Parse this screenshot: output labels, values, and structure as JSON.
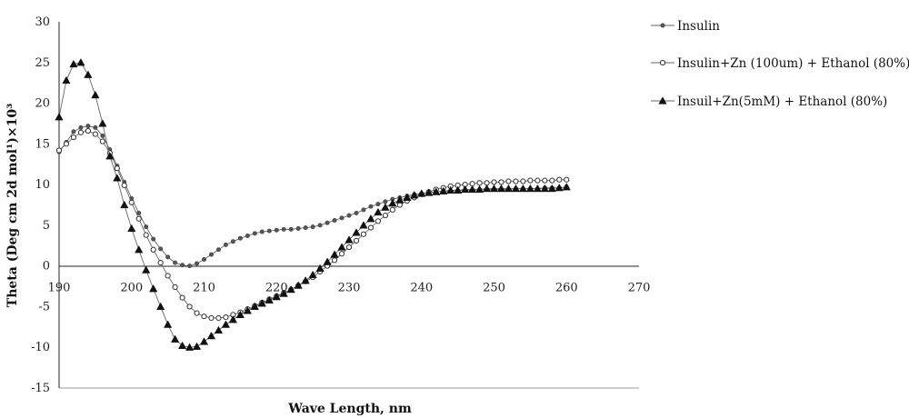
{
  "chart_data": {
    "type": "line",
    "title": "",
    "xlabel": "Wave Length, nm",
    "ylabel": "Theta (Deg cm 2d mol¹)×10³",
    "xlim": [
      190,
      270
    ],
    "ylim": [
      -15,
      30
    ],
    "xticks": [
      "190",
      "200",
      "210",
      "220",
      "230",
      "240",
      "250",
      "260",
      "270"
    ],
    "yticks": [
      "30",
      "25",
      "20",
      "15",
      "10",
      "5",
      "0",
      "-5",
      "-10",
      "-15"
    ],
    "grid": false,
    "legend_position": "right",
    "series": [
      {
        "name": "Insulin",
        "marker": "filled-dot",
        "x": [
          190,
          191,
          192,
          193,
          194,
          195,
          196,
          197,
          198,
          199,
          200,
          201,
          202,
          203,
          204,
          205,
          206,
          207,
          208,
          209,
          210,
          211,
          212,
          213,
          214,
          215,
          216,
          217,
          218,
          219,
          220,
          221,
          222,
          223,
          224,
          225,
          226,
          227,
          228,
          229,
          230,
          231,
          232,
          233,
          234,
          235,
          236,
          237,
          238,
          239,
          240,
          241,
          242,
          243,
          244,
          245,
          246,
          247,
          248,
          249,
          250,
          251,
          252,
          253,
          254,
          255,
          256,
          257,
          258,
          259,
          260
        ],
        "y": [
          14.0,
          15.2,
          16.5,
          17.0,
          17.2,
          17.0,
          16.0,
          14.3,
          12.3,
          10.3,
          8.3,
          6.5,
          4.8,
          3.3,
          2.1,
          1.1,
          0.4,
          0.1,
          0.0,
          0.3,
          0.8,
          1.4,
          2.0,
          2.6,
          3.0,
          3.4,
          3.7,
          4.0,
          4.2,
          4.3,
          4.4,
          4.5,
          4.5,
          4.6,
          4.7,
          4.8,
          5.0,
          5.3,
          5.6,
          5.9,
          6.2,
          6.5,
          6.9,
          7.3,
          7.6,
          7.9,
          8.2,
          8.4,
          8.6,
          8.8,
          8.9,
          9.0,
          9.1,
          9.2,
          9.2,
          9.3,
          9.3,
          9.3,
          9.4,
          9.4,
          9.4,
          9.4,
          9.4,
          9.5,
          9.5,
          9.5,
          9.5,
          9.6,
          9.6,
          9.6,
          9.7
        ]
      },
      {
        "name": "Insulin+Zn (100um) + Ethanol (80%)",
        "marker": "open-circle",
        "x": [
          190,
          191,
          192,
          193,
          194,
          195,
          196,
          197,
          198,
          199,
          200,
          201,
          202,
          203,
          204,
          205,
          206,
          207,
          208,
          209,
          210,
          211,
          212,
          213,
          214,
          215,
          216,
          217,
          218,
          219,
          220,
          221,
          222,
          223,
          224,
          225,
          226,
          227,
          228,
          229,
          230,
          231,
          232,
          233,
          234,
          235,
          236,
          237,
          238,
          239,
          240,
          241,
          242,
          243,
          244,
          245,
          246,
          247,
          248,
          249,
          250,
          251,
          252,
          253,
          254,
          255,
          256,
          257,
          258,
          259,
          260
        ],
        "y": [
          14.2,
          15.0,
          15.8,
          16.4,
          16.6,
          16.2,
          15.3,
          13.9,
          12.0,
          9.9,
          7.8,
          5.8,
          3.8,
          2.0,
          0.4,
          -1.2,
          -2.6,
          -3.9,
          -5.0,
          -5.8,
          -6.2,
          -6.4,
          -6.4,
          -6.3,
          -6.0,
          -5.7,
          -5.3,
          -4.9,
          -4.5,
          -4.1,
          -3.7,
          -3.3,
          -2.9,
          -2.4,
          -1.9,
          -1.4,
          -0.7,
          0.0,
          0.7,
          1.5,
          2.3,
          3.1,
          3.9,
          4.7,
          5.5,
          6.2,
          6.9,
          7.5,
          8.0,
          8.4,
          8.8,
          9.1,
          9.4,
          9.6,
          9.8,
          9.9,
          10.0,
          10.1,
          10.2,
          10.2,
          10.3,
          10.3,
          10.4,
          10.4,
          10.4,
          10.5,
          10.5,
          10.5,
          10.5,
          10.6,
          10.6
        ]
      },
      {
        "name": "Insuil+Zn(5mM) + Ethanol (80%)",
        "marker": "filled-triangle",
        "x": [
          190,
          191,
          192,
          193,
          194,
          195,
          196,
          197,
          198,
          199,
          200,
          201,
          202,
          203,
          204,
          205,
          206,
          207,
          208,
          209,
          210,
          211,
          212,
          213,
          214,
          215,
          216,
          217,
          218,
          219,
          220,
          221,
          222,
          223,
          224,
          225,
          226,
          227,
          228,
          229,
          230,
          231,
          232,
          233,
          234,
          235,
          236,
          237,
          238,
          239,
          240,
          241,
          242,
          243,
          244,
          245,
          246,
          247,
          248,
          249,
          250,
          251,
          252,
          253,
          254,
          255,
          256,
          257,
          258,
          259,
          260
        ],
        "y": [
          18.3,
          22.8,
          24.8,
          25.0,
          23.5,
          21.0,
          17.5,
          13.5,
          10.8,
          7.5,
          4.6,
          2.0,
          -0.5,
          -2.8,
          -5.0,
          -7.2,
          -9.0,
          -9.8,
          -10.0,
          -9.9,
          -9.3,
          -8.6,
          -7.9,
          -7.2,
          -6.6,
          -6.0,
          -5.5,
          -5.0,
          -4.6,
          -4.2,
          -3.8,
          -3.4,
          -2.9,
          -2.4,
          -1.8,
          -1.1,
          -0.3,
          0.5,
          1.4,
          2.3,
          3.2,
          4.1,
          5.0,
          5.8,
          6.6,
          7.2,
          7.7,
          8.1,
          8.4,
          8.7,
          8.9,
          9.0,
          9.1,
          9.2,
          9.3,
          9.3,
          9.4,
          9.4,
          9.4,
          9.5,
          9.5,
          9.5,
          9.5,
          9.5,
          9.5,
          9.5,
          9.5,
          9.5,
          9.5,
          9.6,
          9.7
        ]
      }
    ]
  }
}
